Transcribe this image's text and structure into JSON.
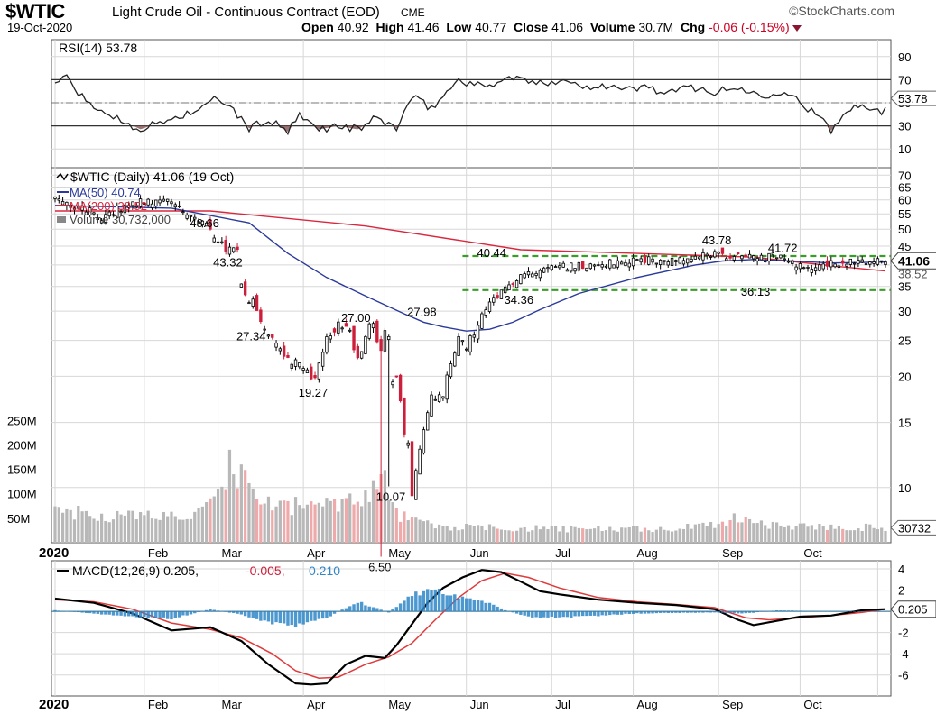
{
  "header": {
    "symbol": "$WTIC",
    "description": "Light Crude Oil - Continuous Contract (EOD)",
    "exchange": "CME",
    "date": "19-Oct-2020",
    "brand": "©StockCharts.com",
    "open_label": "Open",
    "open": "40.92",
    "high_label": "High",
    "high": "41.46",
    "low_label": "Low",
    "low": "40.77",
    "close_label": "Close",
    "close": "41.06",
    "volume_label": "Volume",
    "volume": "30.7M",
    "chg_label": "Chg",
    "chg": "-0.06 (-0.15%)"
  },
  "colors": {
    "up": "#000000",
    "down": "#cc1f3b",
    "ma50": "#2b3a9a",
    "ma200": "#d8283f",
    "support": "#3a9d2a",
    "rsi": "#222222",
    "macd": "#000000",
    "signal": "#e03a3a",
    "histogram": "#2f86c8",
    "vol_up": "#b8b8b8",
    "vol_down": "#eeaaaa",
    "grid": "#d7d7d7"
  },
  "chart_data": [
    {
      "type": "line",
      "panel": "rsi",
      "legend": "RSI(14) 53.78",
      "last_label": "53.78",
      "ylim": [
        0,
        100
      ],
      "yticks": [
        10,
        30,
        50,
        70,
        90
      ],
      "ytick_labels": [
        "10",
        "30",
        "50",
        "70",
        "90"
      ],
      "reference_lines": [
        30,
        70
      ],
      "mid_line": 50,
      "shade_below": 30,
      "x": [
        0,
        3,
        8,
        15,
        22,
        30,
        38,
        42,
        48,
        50,
        55,
        60,
        63,
        68,
        73,
        78,
        83,
        88,
        92,
        97,
        104,
        110,
        118,
        125,
        131,
        136,
        141,
        147,
        152,
        158,
        164,
        170,
        176,
        182,
        188,
        193,
        196,
        200,
        206,
        213,
        220,
        226,
        232,
        236,
        241,
        246,
        251,
        256,
        261,
        266
      ],
      "values": [
        68,
        72,
        50,
        38,
        27,
        36,
        45,
        55,
        36,
        28,
        35,
        25,
        38,
        27,
        30,
        27,
        37,
        28,
        55,
        45,
        70,
        64,
        72,
        66,
        71,
        63,
        66,
        61,
        64,
        58,
        64,
        59,
        63,
        56,
        61,
        48,
        40,
        26,
        50,
        43,
        55,
        52,
        57,
        50,
        54,
        43,
        56,
        51,
        56,
        53.78
      ]
    },
    {
      "type": "candlestick",
      "panel": "price",
      "scale": "log",
      "legend": [
        "$WTIC (Daily) 41.06 (19 Oct)",
        "MA(50) 40.74",
        "MA(200) 38.52",
        "Volume 30,732,000"
      ],
      "last_labels": [
        "41.06",
        "38.52"
      ],
      "ylim": [
        7.5,
        75
      ],
      "yticks": [
        10,
        15,
        20,
        25,
        30,
        35,
        40,
        45,
        50,
        55,
        60,
        65,
        70
      ],
      "ytick_labels": [
        "10",
        "15",
        "20",
        "25",
        "30",
        "35",
        "40",
        "45",
        "50",
        "55",
        "60",
        "65",
        "70"
      ],
      "xticks": [
        0,
        23,
        42,
        64,
        85,
        106,
        128,
        149,
        171,
        192,
        212
      ],
      "xtick_labels": [
        "2020",
        "Feb",
        "Mar",
        "Apr",
        "May",
        "Jun",
        "Jul",
        "Aug",
        "Sep",
        "Oct",
        ""
      ],
      "anchors_x": [
        0,
        6,
        12,
        20,
        28,
        38,
        42,
        45,
        47,
        48,
        50,
        51,
        53,
        58,
        60,
        63,
        67,
        70,
        73,
        76,
        78,
        80,
        85,
        88,
        90,
        92,
        95,
        97,
        100,
        104,
        106,
        110,
        112,
        116,
        122,
        130,
        138,
        146,
        152,
        158,
        164,
        168,
        170,
        176,
        182,
        186,
        192,
        198,
        204,
        210,
        214
      ],
      "anchors_close": [
        61,
        58,
        54,
        59,
        60,
        53,
        46,
        44,
        44,
        35,
        31,
        32,
        28,
        24,
        22,
        22,
        19.5,
        25,
        28,
        26,
        22,
        25,
        24,
        20,
        16,
        10.5,
        13,
        16,
        18,
        25.5,
        24,
        29,
        32,
        35,
        38,
        39.5,
        40,
        40.7,
        41.3,
        41.5,
        41.8,
        42.5,
        43,
        42,
        41.5,
        42.4,
        39.6,
        40.2,
        40.6,
        40.3,
        41.06
      ],
      "down_days": [
        40,
        44,
        47,
        49,
        52,
        53,
        56,
        59,
        60,
        66,
        67,
        72,
        75,
        77,
        78,
        83,
        84,
        88,
        89,
        90,
        92,
        114,
        118,
        136,
        152,
        172,
        174,
        176,
        178,
        199,
        203
      ],
      "ma50": {
        "name": "MA(50)",
        "x": [
          0,
          30,
          50,
          60,
          70,
          80,
          90,
          95,
          100,
          106,
          112,
          118,
          125,
          135,
          150,
          165,
          172,
          180,
          190,
          200,
          214
        ],
        "values": [
          58,
          57,
          52,
          43,
          37,
          33,
          29.5,
          28,
          27.2,
          26.5,
          26.8,
          28,
          30.3,
          33.5,
          37,
          40,
          41,
          41.4,
          41,
          40.5,
          40.74
        ]
      },
      "ma200": {
        "name": "MA(200)",
        "x": [
          0,
          40,
          80,
          120,
          150,
          180,
          200,
          214
        ],
        "values": [
          56,
          56,
          51,
          44,
          43,
          42,
          39.8,
          38.52
        ]
      },
      "support_lines": [
        42.3,
        34.2
      ],
      "support_x_start": 105,
      "annotations": [
        {
          "x": 38,
          "value": 48.66,
          "label": "48.66",
          "pos": "above"
        },
        {
          "x": 44,
          "value": 43.32,
          "label": "43.32",
          "pos": "below"
        },
        {
          "x": 50,
          "value": 27.34,
          "label": "27.34",
          "pos": "below"
        },
        {
          "x": 66,
          "value": 19.27,
          "label": "19.27",
          "pos": "below"
        },
        {
          "x": 77,
          "value": 27.0,
          "label": "27.00",
          "pos": "above"
        },
        {
          "x": 84,
          "value": 6.5,
          "label": "6.50",
          "pos": "below"
        },
        {
          "x": 86,
          "value": 10.07,
          "label": "10.07",
          "pos": "below"
        },
        {
          "x": 94,
          "value": 27.98,
          "label": "27.98",
          "pos": "above"
        },
        {
          "x": 112,
          "value": 40.44,
          "label": "40.44",
          "pos": "above"
        },
        {
          "x": 119,
          "value": 34.36,
          "label": "34.36",
          "pos": "below"
        },
        {
          "x": 170,
          "value": 43.78,
          "label": "43.78",
          "pos": "above"
        },
        {
          "x": 180,
          "value": 36.13,
          "label": "36.13",
          "pos": "below"
        },
        {
          "x": 187,
          "value": 41.72,
          "label": "41.72",
          "pos": "above"
        }
      ]
    },
    {
      "type": "bar",
      "panel": "volume",
      "yticks": [
        50,
        100,
        150,
        200,
        250
      ],
      "ytick_labels": [
        "50M",
        "100M",
        "150M",
        "200M",
        "250M"
      ],
      "ylim": [
        0,
        280
      ],
      "last_label": "30732",
      "anchors_x": [
        0,
        10,
        25,
        38,
        42,
        45,
        48,
        52,
        60,
        70,
        80,
        84,
        86,
        88,
        92,
        100,
        130,
        160,
        172,
        178,
        185,
        214
      ],
      "anchors_values": [
        70,
        55,
        55,
        60,
        95,
        90,
        160,
        85,
        75,
        80,
        95,
        150,
        100,
        60,
        45,
        32,
        28,
        28,
        40,
        48,
        35,
        30.7
      ],
      "spikes": [
        {
          "x": 45,
          "value": 190
        },
        {
          "x": 48,
          "value": 160
        },
        {
          "x": 84,
          "value": 140
        },
        {
          "x": 83,
          "value": 110
        },
        {
          "x": 175,
          "value": 60
        }
      ]
    },
    {
      "type": "line",
      "panel": "macd",
      "legend": [
        "MACD(12,26,9) 0.205,",
        "-0.005,",
        "0.210"
      ],
      "last_label": "0.205",
      "ylim": [
        -7.3,
        4.6
      ],
      "yticks": [
        -6,
        -4,
        -2,
        0,
        2,
        4
      ],
      "ytick_labels": [
        "-6",
        "-4",
        "-2",
        "0",
        "2",
        "4"
      ],
      "macd": {
        "x": [
          0,
          10,
          20,
          30,
          40,
          48,
          55,
          62,
          66,
          70,
          75,
          80,
          85,
          88,
          92,
          96,
          100,
          105,
          110,
          115,
          120,
          125,
          130,
          140,
          150,
          160,
          170,
          176,
          180,
          186,
          192,
          200,
          208,
          214
        ],
        "values": [
          1.2,
          0.8,
          -0.2,
          -1.8,
          -1.5,
          -2.8,
          -5,
          -6.8,
          -6.9,
          -6.8,
          -5,
          -4.2,
          -4.4,
          -3.2,
          -1.2,
          0.8,
          2.2,
          3.2,
          3.9,
          3.7,
          2.8,
          1.9,
          1.6,
          1.1,
          0.8,
          0.6,
          0.2,
          -0.8,
          -1.3,
          -0.9,
          -0.5,
          -0.4,
          0.1,
          0.205
        ]
      },
      "signal": {
        "x": [
          0,
          10,
          20,
          30,
          40,
          48,
          56,
          62,
          68,
          73,
          80,
          86,
          92,
          98,
          104,
          110,
          116,
          122,
          130,
          140,
          150,
          160,
          170,
          178,
          184,
          192,
          200,
          208,
          214
        ],
        "values": [
          1.1,
          0.9,
          0.2,
          -1.1,
          -1.7,
          -2.5,
          -4,
          -5.6,
          -6.3,
          -6.2,
          -5,
          -4.3,
          -3,
          -0.8,
          1.3,
          2.9,
          3.6,
          3.2,
          2.2,
          1.3,
          0.9,
          0.65,
          0.35,
          -0.6,
          -0.8,
          -0.6,
          -0.4,
          -0.1,
          0.21
        ]
      },
      "histogram": {
        "x": [
          0,
          10,
          20,
          30,
          40,
          48,
          55,
          62,
          70,
          78,
          86,
          92,
          98,
          104,
          110,
          116,
          122,
          130,
          150,
          170,
          178,
          186,
          200,
          214
        ],
        "values": [
          0.1,
          -0.2,
          -0.5,
          -0.7,
          0.2,
          -0.3,
          -1.1,
          -1.3,
          -0.6,
          0.9,
          -0.1,
          1.6,
          2.0,
          1.4,
          1.0,
          0.1,
          -0.5,
          -0.6,
          -0.2,
          -0.1,
          -0.2,
          0.1,
          0.0,
          -0.005
        ]
      },
      "xticks": [
        0,
        23,
        42,
        64,
        85,
        106,
        128,
        149,
        171,
        192,
        212
      ],
      "xtick_labels": [
        "2020",
        "Feb",
        "Mar",
        "Apr",
        "May",
        "Jun",
        "Jul",
        "Aug",
        "Sep",
        "Oct",
        ""
      ]
    }
  ]
}
